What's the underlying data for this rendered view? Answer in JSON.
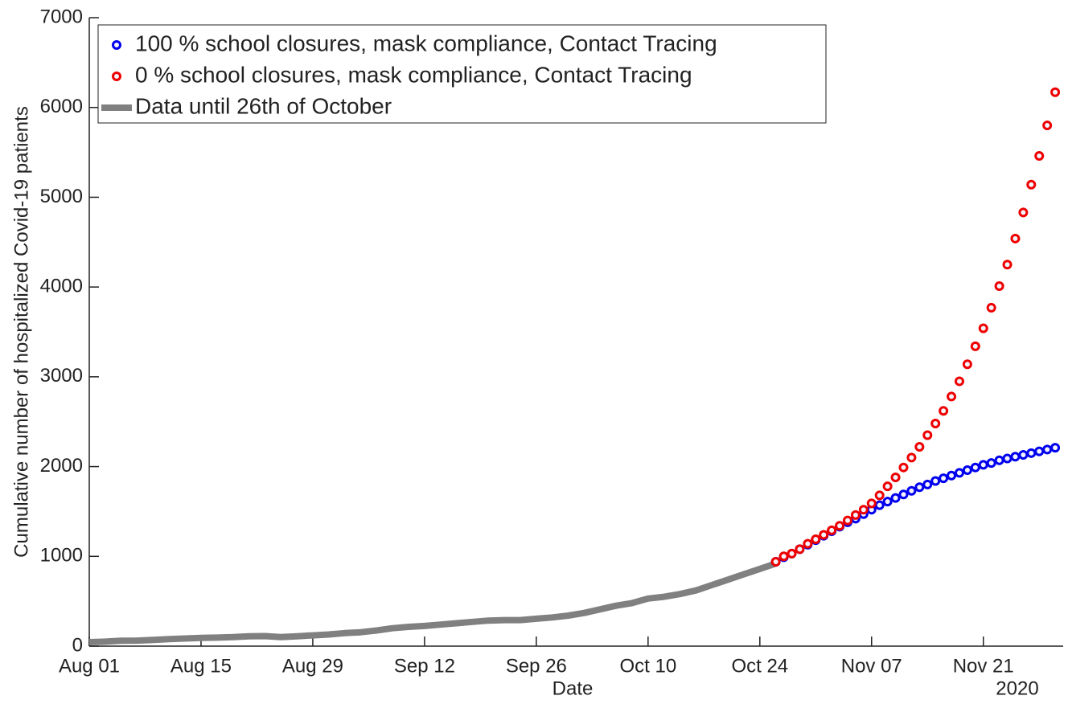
{
  "chart_data": {
    "type": "line",
    "x_label": "Date",
    "y_label": "Cumulative number of hospitalized Covid-19 patients",
    "x_year_label": "2020",
    "xlim": [
      "2020-08-01",
      "2020-12-01"
    ],
    "xticks": [
      {
        "value": "2020-08-01",
        "label": "Aug 01"
      },
      {
        "value": "2020-08-15",
        "label": "Aug 15"
      },
      {
        "value": "2020-08-29",
        "label": "Aug 29"
      },
      {
        "value": "2020-09-12",
        "label": "Sep 12"
      },
      {
        "value": "2020-09-26",
        "label": "Sep 26"
      },
      {
        "value": "2020-10-10",
        "label": "Oct 10"
      },
      {
        "value": "2020-10-24",
        "label": "Oct 24"
      },
      {
        "value": "2020-11-07",
        "label": "Nov 07"
      },
      {
        "value": "2020-11-21",
        "label": "Nov 21"
      }
    ],
    "ylim": [
      0,
      7000
    ],
    "yticks": [
      0,
      1000,
      2000,
      3000,
      4000,
      5000,
      6000,
      7000
    ],
    "legend_position": "upper left",
    "x": [
      "2020-10-26",
      "2020-10-27",
      "2020-10-28",
      "2020-10-29",
      "2020-10-30",
      "2020-10-31",
      "2020-11-01",
      "2020-11-02",
      "2020-11-03",
      "2020-11-04",
      "2020-11-05",
      "2020-11-06",
      "2020-11-07",
      "2020-11-08",
      "2020-11-09",
      "2020-11-10",
      "2020-11-11",
      "2020-11-12",
      "2020-11-13",
      "2020-11-14",
      "2020-11-15",
      "2020-11-16",
      "2020-11-17",
      "2020-11-18",
      "2020-11-19",
      "2020-11-20",
      "2020-11-21",
      "2020-11-22",
      "2020-11-23",
      "2020-11-24",
      "2020-11-25",
      "2020-11-26",
      "2020-11-27",
      "2020-11-28",
      "2020-11-29",
      "2020-11-30"
    ],
    "series": [
      {
        "name": "100 % school closures, mask compliance, Contact Tracing",
        "color": "#0000ee",
        "mode": "markers",
        "values": [
          940,
          990,
          1030,
          1080,
          1130,
          1180,
          1230,
          1280,
          1330,
          1380,
          1420,
          1470,
          1520,
          1570,
          1610,
          1650,
          1690,
          1730,
          1770,
          1800,
          1840,
          1870,
          1900,
          1930,
          1960,
          1990,
          2020,
          2040,
          2070,
          2090,
          2110,
          2130,
          2150,
          2170,
          2190,
          2210
        ]
      },
      {
        "name": "0 % school closures, mask compliance, Contact Tracing",
        "color": "#ee0000",
        "mode": "markers",
        "values": [
          940,
          1000,
          1030,
          1080,
          1140,
          1190,
          1240,
          1290,
          1340,
          1400,
          1460,
          1520,
          1590,
          1680,
          1780,
          1880,
          1990,
          2100,
          2220,
          2350,
          2480,
          2620,
          2780,
          2950,
          3140,
          3340,
          3540,
          3770,
          4010,
          4250,
          4540,
          4830,
          5140,
          5460,
          5800,
          6170
        ]
      },
      {
        "name": "Data until 26th of October",
        "color": "#808080",
        "mode": "line",
        "x": [
          "2020-08-01",
          "2020-08-03",
          "2020-08-05",
          "2020-08-07",
          "2020-08-09",
          "2020-08-11",
          "2020-08-13",
          "2020-08-15",
          "2020-08-17",
          "2020-08-19",
          "2020-08-21",
          "2020-08-23",
          "2020-08-25",
          "2020-08-27",
          "2020-08-29",
          "2020-08-31",
          "2020-09-02",
          "2020-09-04",
          "2020-09-06",
          "2020-09-08",
          "2020-09-10",
          "2020-09-12",
          "2020-09-14",
          "2020-09-16",
          "2020-09-18",
          "2020-09-20",
          "2020-09-22",
          "2020-09-24",
          "2020-09-26",
          "2020-09-28",
          "2020-09-30",
          "2020-10-02",
          "2020-10-04",
          "2020-10-06",
          "2020-10-08",
          "2020-10-10",
          "2020-10-12",
          "2020-10-14",
          "2020-10-16",
          "2020-10-18",
          "2020-10-20",
          "2020-10-22",
          "2020-10-24",
          "2020-10-26"
        ],
        "values": [
          45,
          50,
          60,
          62,
          70,
          78,
          85,
          92,
          95,
          100,
          110,
          112,
          100,
          110,
          120,
          130,
          145,
          155,
          175,
          200,
          215,
          225,
          240,
          255,
          270,
          285,
          290,
          290,
          305,
          320,
          340,
          370,
          410,
          450,
          480,
          530,
          550,
          580,
          620,
          680,
          740,
          800,
          860,
          920
        ]
      }
    ]
  }
}
